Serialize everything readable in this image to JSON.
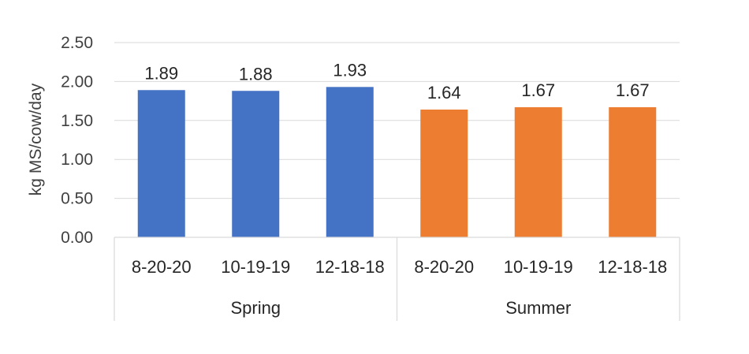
{
  "chart_data": {
    "type": "bar",
    "title": "",
    "ylabel": "kg MS/cow/day",
    "xlabel": "",
    "ylim": [
      0,
      2.5
    ],
    "yticks": [
      "0.00",
      "0.50",
      "1.00",
      "1.50",
      "2.00",
      "2.50"
    ],
    "gridlines": true,
    "legend": "none",
    "groups": [
      {
        "name": "Spring",
        "color": "#4472C4",
        "categories": [
          "8-20-20",
          "10-19-19",
          "12-18-18"
        ],
        "values": [
          1.89,
          1.88,
          1.93
        ],
        "labels": [
          "1.89",
          "1.88",
          "1.93"
        ]
      },
      {
        "name": "Summer",
        "color": "#ED7D31",
        "categories": [
          "8-20-20",
          "10-19-19",
          "12-18-18"
        ],
        "values": [
          1.64,
          1.67,
          1.67
        ],
        "labels": [
          "1.64",
          "1.67",
          "1.67"
        ]
      }
    ]
  }
}
